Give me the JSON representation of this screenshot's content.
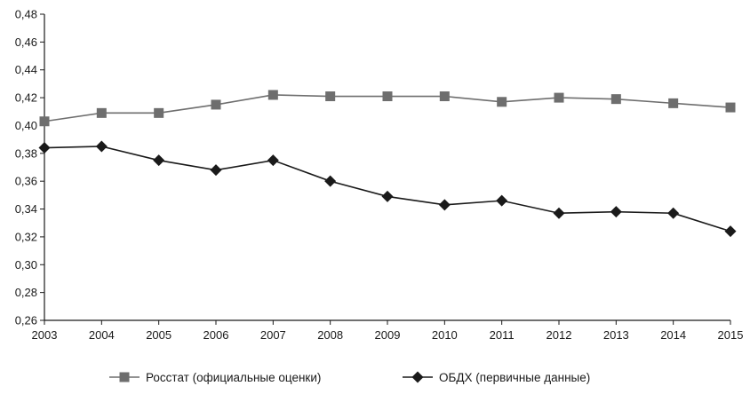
{
  "chart_data": {
    "type": "line",
    "title": "",
    "xlabel": "",
    "ylabel": "",
    "x": [
      2003,
      2004,
      2005,
      2006,
      2007,
      2008,
      2009,
      2010,
      2011,
      2012,
      2013,
      2014,
      2015
    ],
    "x_tick_labels": [
      "2003",
      "2004",
      "2005",
      "2006",
      "2007",
      "2008",
      "2009",
      "2010",
      "2011",
      "2012",
      "2013",
      "2014",
      "2015"
    ],
    "ylim": [
      0.26,
      0.48
    ],
    "y_ticks": [
      0.26,
      0.28,
      0.3,
      0.32,
      0.34,
      0.36,
      0.38,
      0.4,
      0.42,
      0.44,
      0.46,
      0.48
    ],
    "y_tick_labels": [
      "0,26",
      "0,28",
      "0,30",
      "0,32",
      "0,34",
      "0,36",
      "0,38",
      "0,40",
      "0,42",
      "0,44",
      "0,46",
      "0,48"
    ],
    "grid": false,
    "legend_position": "bottom",
    "series": [
      {
        "name": "Росстат (официальные оценки)",
        "marker": "square",
        "color": "#6e6e6e",
        "values": [
          0.403,
          0.409,
          0.409,
          0.415,
          0.422,
          0.421,
          0.421,
          0.421,
          0.417,
          0.42,
          0.419,
          0.416,
          0.413
        ]
      },
      {
        "name": "ОБДХ (первичные данные)",
        "marker": "diamond",
        "color": "#1a1a1a",
        "values": [
          0.384,
          0.385,
          0.375,
          0.368,
          0.375,
          0.36,
          0.349,
          0.343,
          0.346,
          0.337,
          0.338,
          0.337,
          0.324
        ]
      }
    ]
  }
}
